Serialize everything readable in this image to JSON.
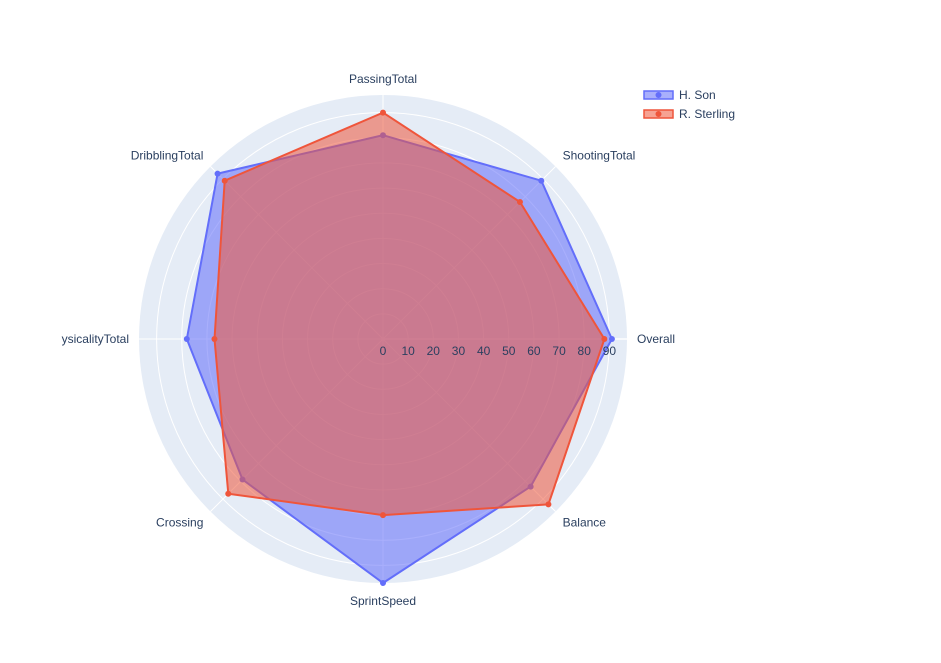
{
  "chart_data": {
    "type": "radar",
    "categories": [
      "Overall",
      "ShootingTotal",
      "PassingTotal",
      "DribblingTotal",
      "PhysicalityTotal",
      "Crossing",
      "SprintSpeed",
      "Balance"
    ],
    "category_display": [
      "Overall",
      "ShootingTotal",
      "PassingTotal",
      "DribblingTotal",
      "ysicalityTotal",
      "Crossing",
      "SprintSpeed",
      "Balance"
    ],
    "radial_range": [
      0,
      97
    ],
    "radial_ticks": [
      0,
      10,
      20,
      30,
      40,
      50,
      60,
      70,
      80,
      90
    ],
    "series": [
      {
        "name": "H. Son",
        "color": "#636efa",
        "fill": "rgba(99,110,250,0.55)",
        "values": [
          91,
          89,
          81,
          93,
          78,
          79,
          97,
          83
        ]
      },
      {
        "name": "R. Sterling",
        "color": "#ef553b",
        "fill": "rgba(239,85,59,0.55)",
        "values": [
          88,
          77,
          90,
          89,
          67,
          87,
          70,
          93
        ]
      }
    ],
    "legend_position": "top-right",
    "background_color": "#e5ecf6",
    "grid_color": "#ffffff"
  }
}
